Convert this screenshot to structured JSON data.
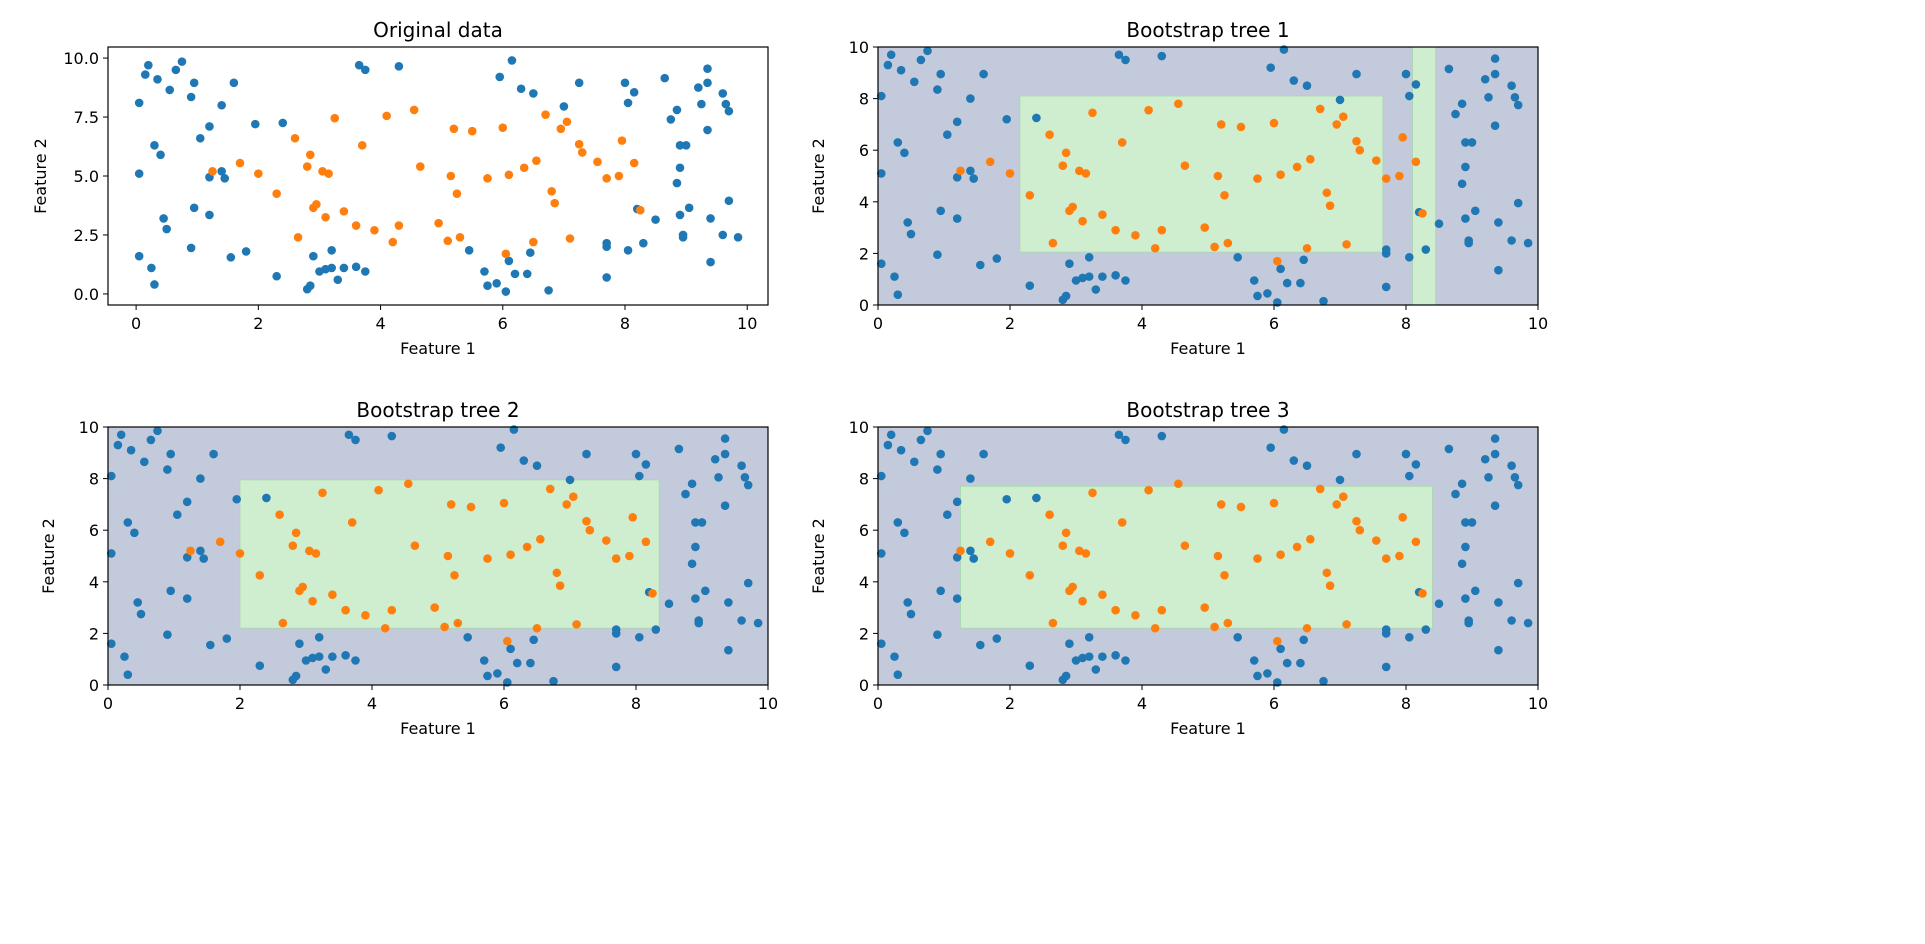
{
  "colors": {
    "class0": "#1f77b4",
    "class1": "#ff7f0e",
    "region0": "#c3cadb",
    "region1": "#cfeed0",
    "region1_edge": "#a8d8ac"
  },
  "points": {
    "class0": [
      [
        0.05,
        8.1
      ],
      [
        0.05,
        5.1
      ],
      [
        0.05,
        1.6
      ],
      [
        0.15,
        9.3
      ],
      [
        0.2,
        9.7
      ],
      [
        0.25,
        1.1
      ],
      [
        0.3,
        0.4
      ],
      [
        0.3,
        6.3
      ],
      [
        0.35,
        9.1
      ],
      [
        0.4,
        5.9
      ],
      [
        0.45,
        3.2
      ],
      [
        0.5,
        2.75
      ],
      [
        0.55,
        8.65
      ],
      [
        0.65,
        9.5
      ],
      [
        0.75,
        9.85
      ],
      [
        0.9,
        8.35
      ],
      [
        0.9,
        1.95
      ],
      [
        0.95,
        3.65
      ],
      [
        0.95,
        8.95
      ],
      [
        1.05,
        6.6
      ],
      [
        1.2,
        7.1
      ],
      [
        1.2,
        4.95
      ],
      [
        1.2,
        3.35
      ],
      [
        1.4,
        8.0
      ],
      [
        1.4,
        5.2
      ],
      [
        1.45,
        4.9
      ],
      [
        1.55,
        1.55
      ],
      [
        1.6,
        8.95
      ],
      [
        1.8,
        1.8
      ],
      [
        1.95,
        7.2
      ],
      [
        2.3,
        0.75
      ],
      [
        2.4,
        7.25
      ],
      [
        2.8,
        0.2
      ],
      [
        2.85,
        0.35
      ],
      [
        2.9,
        1.6
      ],
      [
        3.0,
        0.95
      ],
      [
        3.1,
        1.05
      ],
      [
        3.2,
        1.85
      ],
      [
        3.2,
        1.1
      ],
      [
        3.3,
        0.6
      ],
      [
        3.4,
        1.1
      ],
      [
        3.6,
        1.15
      ],
      [
        3.65,
        9.7
      ],
      [
        3.75,
        9.5
      ],
      [
        3.75,
        0.95
      ],
      [
        4.3,
        9.65
      ],
      [
        5.45,
        1.85
      ],
      [
        5.7,
        0.95
      ],
      [
        5.75,
        0.35
      ],
      [
        5.9,
        0.45
      ],
      [
        5.95,
        9.2
      ],
      [
        6.05,
        0.1
      ],
      [
        6.1,
        1.4
      ],
      [
        6.15,
        9.9
      ],
      [
        6.2,
        0.85
      ],
      [
        6.3,
        8.7
      ],
      [
        6.4,
        0.85
      ],
      [
        6.45,
        1.75
      ],
      [
        6.5,
        8.5
      ],
      [
        6.75,
        0.15
      ],
      [
        7.0,
        7.95
      ],
      [
        7.25,
        8.95
      ],
      [
        7.7,
        2.15
      ],
      [
        7.7,
        2.0
      ],
      [
        7.7,
        0.7
      ],
      [
        8.0,
        8.95
      ],
      [
        8.05,
        8.1
      ],
      [
        8.05,
        1.85
      ],
      [
        8.15,
        8.55
      ],
      [
        8.2,
        3.6
      ],
      [
        8.3,
        2.15
      ],
      [
        8.5,
        3.15
      ],
      [
        8.65,
        9.15
      ],
      [
        8.75,
        7.4
      ],
      [
        8.85,
        4.7
      ],
      [
        8.85,
        7.8
      ],
      [
        8.9,
        3.35
      ],
      [
        8.9,
        5.35
      ],
      [
        8.9,
        6.3
      ],
      [
        9.0,
        6.3
      ],
      [
        8.95,
        2.5
      ],
      [
        8.95,
        2.4
      ],
      [
        9.05,
        3.65
      ],
      [
        9.2,
        8.75
      ],
      [
        9.25,
        8.05
      ],
      [
        9.35,
        6.95
      ],
      [
        9.35,
        8.95
      ],
      [
        9.35,
        9.55
      ],
      [
        9.4,
        1.35
      ],
      [
        9.4,
        3.2
      ],
      [
        9.6,
        2.5
      ],
      [
        9.6,
        8.5
      ],
      [
        9.65,
        8.05
      ],
      [
        9.7,
        7.75
      ],
      [
        9.7,
        3.95
      ],
      [
        9.85,
        2.4
      ]
    ],
    "class1": [
      [
        1.25,
        5.2
      ],
      [
        1.7,
        5.55
      ],
      [
        2.0,
        5.1
      ],
      [
        2.3,
        4.25
      ],
      [
        2.6,
        6.6
      ],
      [
        2.65,
        2.4
      ],
      [
        2.8,
        5.4
      ],
      [
        2.85,
        5.9
      ],
      [
        2.9,
        3.65
      ],
      [
        2.95,
        3.8
      ],
      [
        3.05,
        5.2
      ],
      [
        3.1,
        3.25
      ],
      [
        3.15,
        5.1
      ],
      [
        3.25,
        7.45
      ],
      [
        3.4,
        3.5
      ],
      [
        3.6,
        2.9
      ],
      [
        3.7,
        6.3
      ],
      [
        3.9,
        2.7
      ],
      [
        4.1,
        7.55
      ],
      [
        4.2,
        2.2
      ],
      [
        4.3,
        2.9
      ],
      [
        4.55,
        7.8
      ],
      [
        4.65,
        5.4
      ],
      [
        4.95,
        3.0
      ],
      [
        5.1,
        2.25
      ],
      [
        5.15,
        5.0
      ],
      [
        5.2,
        7.0
      ],
      [
        5.25,
        4.25
      ],
      [
        5.3,
        2.4
      ],
      [
        5.5,
        6.9
      ],
      [
        5.75,
        4.9
      ],
      [
        6.0,
        7.05
      ],
      [
        6.05,
        1.7
      ],
      [
        6.1,
        5.05
      ],
      [
        6.35,
        5.35
      ],
      [
        6.5,
        2.2
      ],
      [
        6.55,
        5.65
      ],
      [
        6.7,
        7.6
      ],
      [
        6.8,
        4.35
      ],
      [
        6.85,
        3.85
      ],
      [
        6.95,
        7.0
      ],
      [
        7.05,
        7.3
      ],
      [
        7.1,
        2.35
      ],
      [
        7.25,
        6.35
      ],
      [
        7.3,
        6.0
      ],
      [
        7.55,
        5.6
      ],
      [
        7.7,
        4.9
      ],
      [
        7.9,
        5.0
      ],
      [
        7.95,
        6.5
      ],
      [
        8.15,
        5.55
      ],
      [
        8.25,
        3.55
      ]
    ]
  },
  "chart_data": [
    {
      "type": "scatter",
      "title": "Original data",
      "xlabel": "Feature 1",
      "ylabel": "Feature 2",
      "xlim": [
        -0.46,
        10.34
      ],
      "ylim": [
        -0.47,
        10.47
      ],
      "xticks": [
        "0",
        "2",
        "4",
        "6",
        "8",
        "10"
      ],
      "xtick_values": [
        0,
        2,
        4,
        6,
        8,
        10
      ],
      "yticks": [
        "0.0",
        "2.5",
        "5.0",
        "7.5",
        "10.0"
      ],
      "ytick_values": [
        0,
        2.5,
        5,
        7.5,
        10
      ],
      "regions": []
    },
    {
      "type": "scatter",
      "title": "Bootstrap tree 1",
      "xlabel": "Feature 1",
      "ylabel": "Feature 2",
      "xlim": [
        0,
        10
      ],
      "ylim": [
        0,
        10
      ],
      "xticks": [
        "0",
        "2",
        "4",
        "6",
        "8",
        "10"
      ],
      "xtick_values": [
        0,
        2,
        4,
        6,
        8,
        10
      ],
      "yticks": [
        "0",
        "2",
        "4",
        "6",
        "8",
        "10"
      ],
      "ytick_values": [
        0,
        2,
        4,
        6,
        8,
        10
      ],
      "regions": [
        [
          2.15,
          7.65,
          2.05,
          8.1
        ],
        [
          8.1,
          8.45,
          0,
          10
        ]
      ]
    },
    {
      "type": "scatter",
      "title": "Bootstrap tree 2",
      "xlabel": "Feature 1",
      "ylabel": "Feature 2",
      "xlim": [
        0,
        10
      ],
      "ylim": [
        0,
        10
      ],
      "xticks": [
        "0",
        "2",
        "4",
        "6",
        "8",
        "10"
      ],
      "xtick_values": [
        0,
        2,
        4,
        6,
        8,
        10
      ],
      "yticks": [
        "0",
        "2",
        "4",
        "6",
        "8",
        "10"
      ],
      "ytick_values": [
        0,
        2,
        4,
        6,
        8,
        10
      ],
      "regions": [
        [
          2.0,
          8.35,
          2.2,
          7.95
        ]
      ]
    },
    {
      "type": "scatter",
      "title": "Bootstrap tree 3",
      "xlabel": "Feature 1",
      "ylabel": "Feature 2",
      "xlim": [
        0,
        10
      ],
      "ylim": [
        0,
        10
      ],
      "xticks": [
        "0",
        "2",
        "4",
        "6",
        "8",
        "10"
      ],
      "xtick_values": [
        0,
        2,
        4,
        6,
        8,
        10
      ],
      "yticks": [
        "0",
        "2",
        "4",
        "6",
        "8",
        "10"
      ],
      "ytick_values": [
        0,
        2,
        4,
        6,
        8,
        10
      ],
      "regions": [
        [
          1.25,
          8.4,
          2.2,
          7.7
        ]
      ]
    }
  ]
}
